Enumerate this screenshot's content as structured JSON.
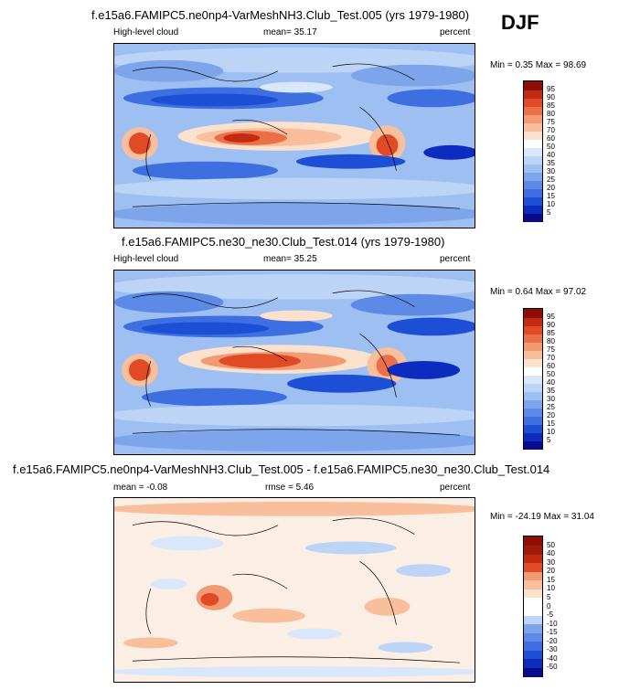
{
  "season": "DJF",
  "panels": [
    {
      "title": "f.e15a6.FAMIPC5.ne0np4-VarMeshNH3.Club_Test.005 (yrs 1979-1980)",
      "left_label": "High-level cloud",
      "center_label": "mean=  35.17",
      "right_label": "percent",
      "minmax": "Min =  0.35 Max =  98.69"
    },
    {
      "title": "f.e15a6.FAMIPC5.ne30_ne30.Club_Test.014 (yrs 1979-1980)",
      "left_label": "High-level cloud",
      "center_label": "mean=  35.25",
      "right_label": "percent",
      "minmax": "Min =  0.64 Max =  97.02"
    },
    {
      "title": "f.e15a6.FAMIPC5.ne0np4-VarMeshNH3.Club_Test.005 - f.e15a6.FAMIPC5.ne30_ne30.Club_Test.014",
      "left_label": "mean =  -0.08",
      "center_label": "rmse =  5.46",
      "right_label": "percent",
      "minmax": "Min = -24.19 Max =  31.04"
    }
  ],
  "chart_data": [
    {
      "type": "heatmap",
      "title": "f.e15a6.FAMIPC5.ne0np4-VarMeshNH3.Club_Test.005 (yrs 1979-1980)",
      "variable": "High-level cloud",
      "units": "percent",
      "mean": 35.17,
      "min": 0.35,
      "max": 98.69,
      "colorbar_levels": [
        5,
        10,
        15,
        20,
        25,
        30,
        35,
        40,
        50,
        60,
        70,
        75,
        80,
        85,
        90,
        95
      ],
      "colors": [
        "#0a0a8c",
        "#0d2bbf",
        "#1c4fd6",
        "#3d6fe0",
        "#5d8ae6",
        "#7ea5ec",
        "#9ebff2",
        "#bcd5f6",
        "#d9e7fa",
        "#ffffff",
        "#fce1cc",
        "#f9bf9d",
        "#f49a72",
        "#ec7047",
        "#e04a25",
        "#c42a12",
        "#8f0d05"
      ]
    },
    {
      "type": "heatmap",
      "title": "f.e15a6.FAMIPC5.ne30_ne30.Club_Test.014 (yrs 1979-1980)",
      "variable": "High-level cloud",
      "units": "percent",
      "mean": 35.25,
      "min": 0.64,
      "max": 97.02,
      "colorbar_levels": [
        5,
        10,
        15,
        20,
        25,
        30,
        35,
        40,
        50,
        60,
        70,
        75,
        80,
        85,
        90,
        95
      ],
      "colors": [
        "#0a0a8c",
        "#0d2bbf",
        "#1c4fd6",
        "#3d6fe0",
        "#5d8ae6",
        "#7ea5ec",
        "#9ebff2",
        "#bcd5f6",
        "#d9e7fa",
        "#ffffff",
        "#fce1cc",
        "#f9bf9d",
        "#f49a72",
        "#ec7047",
        "#e04a25",
        "#c42a12",
        "#8f0d05"
      ]
    },
    {
      "type": "heatmap",
      "title": "f.e15a6.FAMIPC5.ne0np4-VarMeshNH3.Club_Test.005 - f.e15a6.FAMIPC5.ne30_ne30.Club_Test.014",
      "units": "percent",
      "mean": -0.08,
      "rmse": 5.46,
      "min": -24.19,
      "max": 31.04,
      "colorbar_levels": [
        -50,
        -40,
        -30,
        -20,
        -15,
        -10,
        -5,
        0,
        5,
        10,
        15,
        20,
        30,
        40,
        50
      ],
      "colors": [
        "#0a0a8c",
        "#0d2bbf",
        "#1c4fd6",
        "#3d6fe0",
        "#5d8ae6",
        "#7ea5ec",
        "#bcd5f6",
        "#ffffff",
        "#ffffff",
        "#fce1cc",
        "#f9bf9d",
        "#f49a72",
        "#e04a25",
        "#c42a12",
        "#a01a08",
        "#8f0d05"
      ]
    }
  ]
}
